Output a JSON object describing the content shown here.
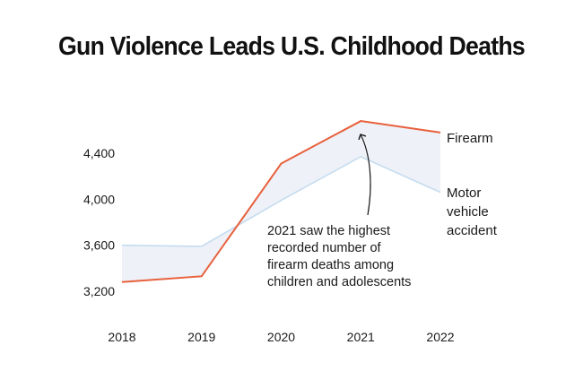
{
  "chart_data": {
    "type": "line",
    "title": "Gun Violence Leads U.S. Childhood Deaths",
    "x": [
      "2018",
      "2019",
      "2020",
      "2021",
      "2022"
    ],
    "ylim": [
      3100,
      4700
    ],
    "yticks": [
      "3,200",
      "3,600",
      "4,000",
      "4,400"
    ],
    "ytick_values": [
      3200,
      3600,
      4000,
      4400
    ],
    "grid": false,
    "series": [
      {
        "name": "Firearm",
        "values": [
          3280,
          3330,
          4310,
          4680,
          4580
        ],
        "color": "#e8603c"
      },
      {
        "name": "Motor vehicle accident",
        "name_lines": [
          "Motor",
          "vehicle",
          "accident"
        ],
        "values": [
          3600,
          3590,
          3990,
          4370,
          4060
        ],
        "color": "#c5dcf0"
      }
    ],
    "fill_between_color": "#eef1f7",
    "annotation": {
      "lines": [
        "2021 saw the highest",
        "recorded number of",
        "firearm deaths among",
        "children and adolescents"
      ]
    }
  }
}
